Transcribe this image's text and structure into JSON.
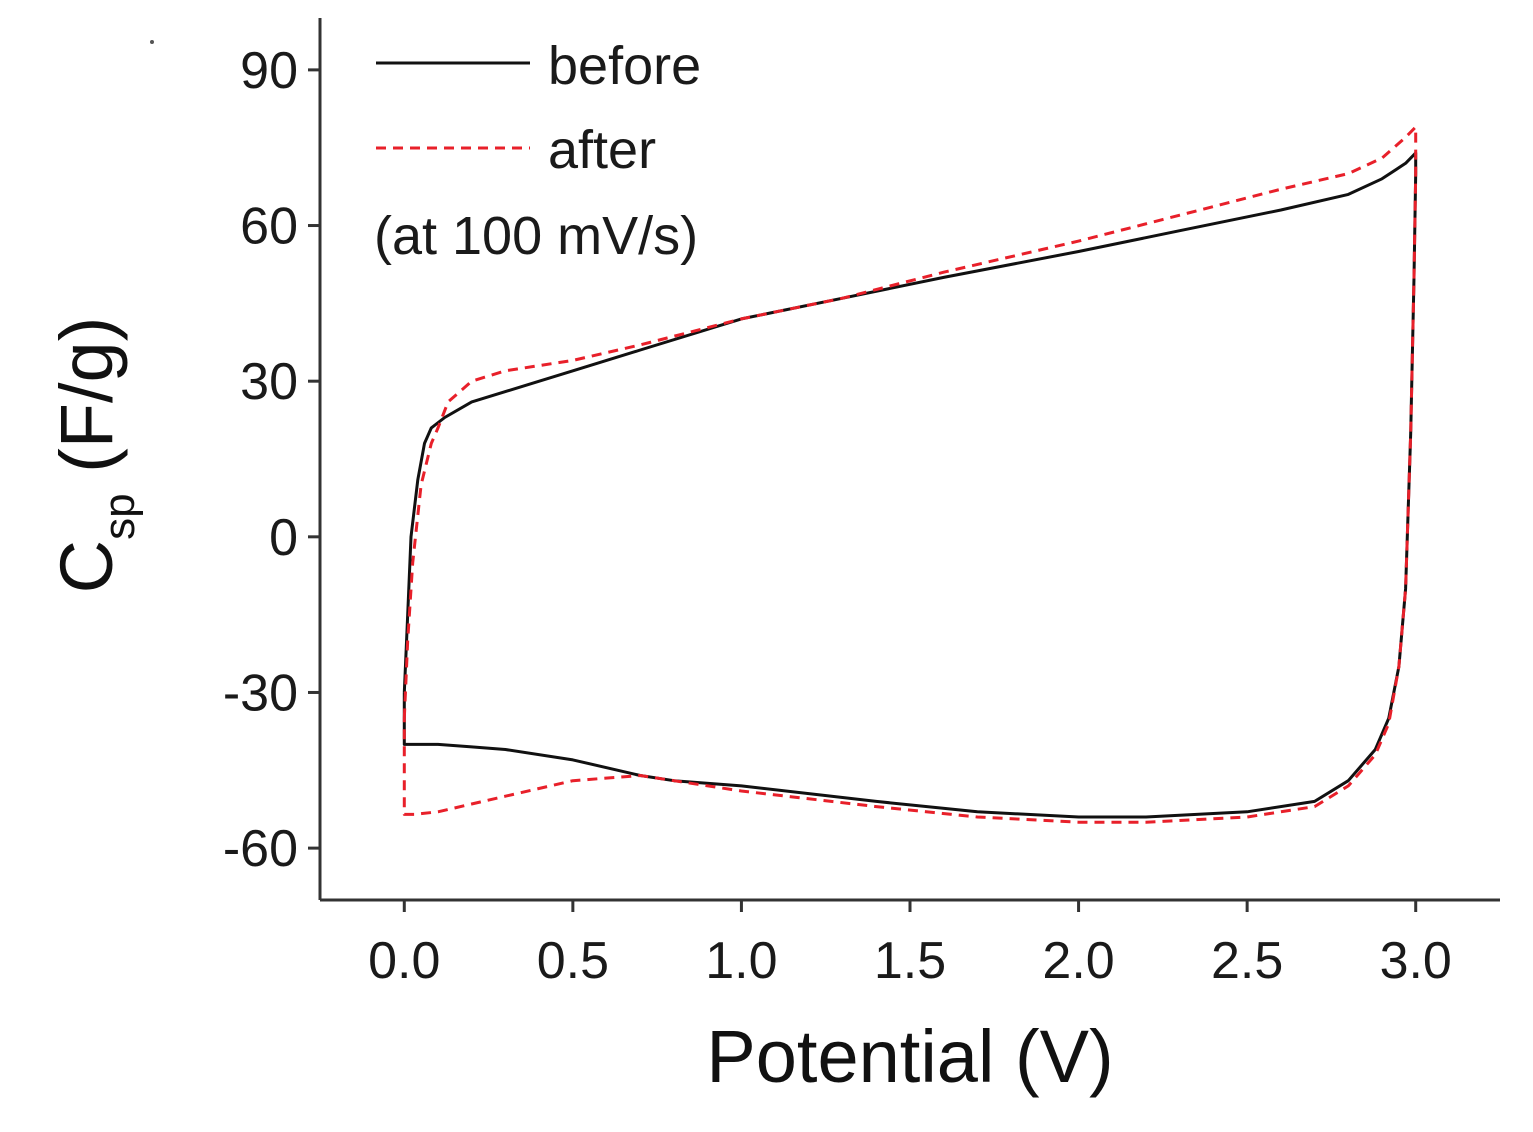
{
  "chart_data": {
    "type": "line",
    "title": "",
    "xlabel": "Potential (V)",
    "ylabel_main": "C",
    "ylabel_sub": "sp",
    "ylabel_unit": " (F/g)",
    "xlim": [
      -0.25,
      3.25
    ],
    "ylim": [
      -70,
      100
    ],
    "x_ticks": [
      0.0,
      0.5,
      1.0,
      1.5,
      2.0,
      2.5,
      3.0
    ],
    "x_tick_labels": [
      "0.0",
      "0.5",
      "1.0",
      "1.5",
      "2.0",
      "2.5",
      "3.0"
    ],
    "y_ticks": [
      90,
      60,
      30,
      0,
      -30,
      -60
    ],
    "y_tick_labels": [
      "90",
      "60",
      "30",
      "0",
      "-30",
      "-60"
    ],
    "legend_position": "top-left",
    "annotation": "(at 100 mV/s)",
    "series": [
      {
        "name": "before",
        "color": "#111111",
        "style": "solid",
        "x": [
          0.0,
          0.01,
          0.02,
          0.04,
          0.06,
          0.08,
          0.12,
          0.2,
          0.3,
          0.5,
          0.7,
          1.0,
          1.3,
          1.6,
          2.0,
          2.3,
          2.6,
          2.8,
          2.9,
          2.97,
          3.0,
          3.0,
          2.995,
          2.985,
          2.97,
          2.95,
          2.92,
          2.88,
          2.8,
          2.7,
          2.5,
          2.2,
          2.0,
          1.7,
          1.4,
          1.0,
          0.8,
          0.7,
          0.5,
          0.3,
          0.2,
          0.1,
          0.0,
          0.0,
          0.0,
          0.0
        ],
        "y": [
          -30,
          -15,
          0,
          11,
          18,
          21,
          23,
          26,
          28,
          32,
          36,
          42,
          46,
          50,
          55,
          59,
          63,
          66,
          69,
          72,
          74,
          70,
          50,
          20,
          -10,
          -25,
          -35,
          -41,
          -47,
          -51,
          -53,
          -54,
          -54,
          -53,
          -51,
          -48,
          -47,
          -46,
          -43,
          -41,
          -40.5,
          -40,
          -40,
          -38,
          -36,
          -30
        ]
      },
      {
        "name": "after",
        "color": "#e8202a",
        "style": "dashed",
        "x": [
          0.0,
          0.01,
          0.025,
          0.05,
          0.08,
          0.1,
          0.13,
          0.2,
          0.3,
          0.5,
          0.7,
          1.0,
          1.3,
          1.6,
          2.0,
          2.3,
          2.6,
          2.8,
          2.9,
          2.97,
          3.0,
          3.0,
          2.995,
          2.985,
          2.97,
          2.95,
          2.92,
          2.88,
          2.8,
          2.7,
          2.5,
          2.2,
          2.0,
          1.7,
          1.4,
          1.0,
          0.8,
          0.7,
          0.5,
          0.3,
          0.1,
          0.03,
          0.0,
          0.0,
          0.0,
          0.0
        ],
        "y": [
          -35,
          -20,
          -5,
          10,
          18,
          21,
          26,
          30,
          32,
          34,
          37,
          42,
          46,
          51,
          57,
          62,
          67,
          70,
          73,
          77,
          79,
          70,
          50,
          20,
          -10,
          -25,
          -36,
          -42,
          -48,
          -52,
          -54,
          -55,
          -55,
          -54,
          -52,
          -49,
          -47,
          -46,
          -47,
          -50,
          -53,
          -53.5,
          -53.5,
          -50,
          -45,
          -35
        ]
      }
    ]
  }
}
